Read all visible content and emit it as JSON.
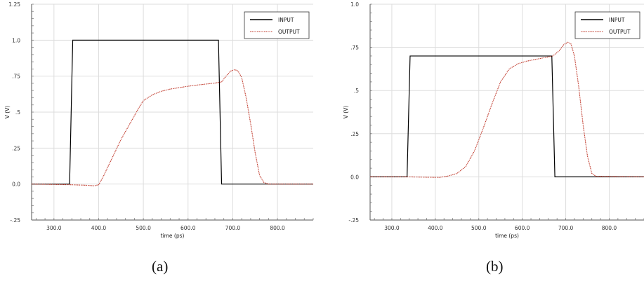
{
  "chart_data": [
    {
      "type": "line",
      "panel_label": "(a)",
      "xlabel": "time (ps)",
      "ylabel": "V (V)",
      "xlim": [
        250,
        880
      ],
      "ylim": [
        -0.25,
        1.25
      ],
      "x_ticks": [
        300,
        400,
        500,
        600,
        700,
        800
      ],
      "x_tick_labels": [
        "300.0",
        "400.0",
        "500.0",
        "600.0",
        "700.0",
        "800.0"
      ],
      "y_ticks": [
        -0.25,
        0,
        0.25,
        0.5,
        0.75,
        1.0,
        1.25
      ],
      "y_tick_labels": [
        "-.25",
        "0.0",
        ".25",
        ".5",
        ".75",
        "1.0",
        "1.25"
      ],
      "grid": true,
      "legend_position": "top-right",
      "series": [
        {
          "name": "INPUT",
          "color": "#000000",
          "style": "solid",
          "x": [
            250,
            335,
            342,
            668,
            675,
            880
          ],
          "y": [
            0,
            0,
            1.0,
            1.0,
            0,
            0
          ]
        },
        {
          "name": "OUTPUT",
          "color": "#c0392b",
          "style": "dotted",
          "x": [
            250,
            340,
            370,
            390,
            400,
            410,
            430,
            450,
            470,
            490,
            500,
            520,
            540,
            560,
            580,
            600,
            620,
            640,
            660,
            675,
            685,
            695,
            705,
            712,
            720,
            730,
            740,
            750,
            760,
            770,
            780,
            880
          ],
          "y": [
            0,
            -0.005,
            -0.008,
            -0.012,
            -0.005,
            0.05,
            0.18,
            0.31,
            0.42,
            0.53,
            0.58,
            0.62,
            0.645,
            0.66,
            0.67,
            0.68,
            0.688,
            0.695,
            0.702,
            0.71,
            0.75,
            0.785,
            0.795,
            0.785,
            0.74,
            0.6,
            0.42,
            0.22,
            0.06,
            0.01,
            0.0,
            0
          ]
        }
      ]
    },
    {
      "type": "line",
      "panel_label": "(b)",
      "xlabel": "time (ps)",
      "ylabel": "V (V)",
      "xlim": [
        250,
        880
      ],
      "ylim": [
        -0.25,
        1.0
      ],
      "x_ticks": [
        300,
        400,
        500,
        600,
        700,
        800
      ],
      "x_tick_labels": [
        "300.0",
        "400.0",
        "500.0",
        "600.0",
        "700.0",
        "800.0"
      ],
      "y_ticks": [
        -0.25,
        0,
        0.25,
        0.5,
        0.75,
        1.0
      ],
      "y_tick_labels": [
        "-.25",
        "0.0",
        ".25",
        ".5",
        ".75",
        "1.0"
      ],
      "grid": true,
      "legend_position": "top-right",
      "series": [
        {
          "name": "INPUT",
          "color": "#000000",
          "style": "solid",
          "x": [
            250,
            335,
            342,
            668,
            675,
            880
          ],
          "y": [
            0,
            0,
            0.7,
            0.7,
            0,
            0
          ]
        },
        {
          "name": "OUTPUT",
          "color": "#c0392b",
          "style": "dotted",
          "x": [
            250,
            340,
            380,
            410,
            430,
            450,
            470,
            490,
            510,
            530,
            550,
            570,
            590,
            610,
            630,
            650,
            670,
            685,
            695,
            705,
            712,
            720,
            730,
            740,
            750,
            760,
            770,
            880
          ],
          "y": [
            0,
            0,
            -0.002,
            -0.003,
            0.005,
            0.02,
            0.06,
            0.15,
            0.28,
            0.42,
            0.55,
            0.625,
            0.655,
            0.67,
            0.68,
            0.69,
            0.7,
            0.73,
            0.765,
            0.78,
            0.77,
            0.7,
            0.52,
            0.3,
            0.12,
            0.02,
            0.003,
            0
          ]
        }
      ]
    }
  ]
}
